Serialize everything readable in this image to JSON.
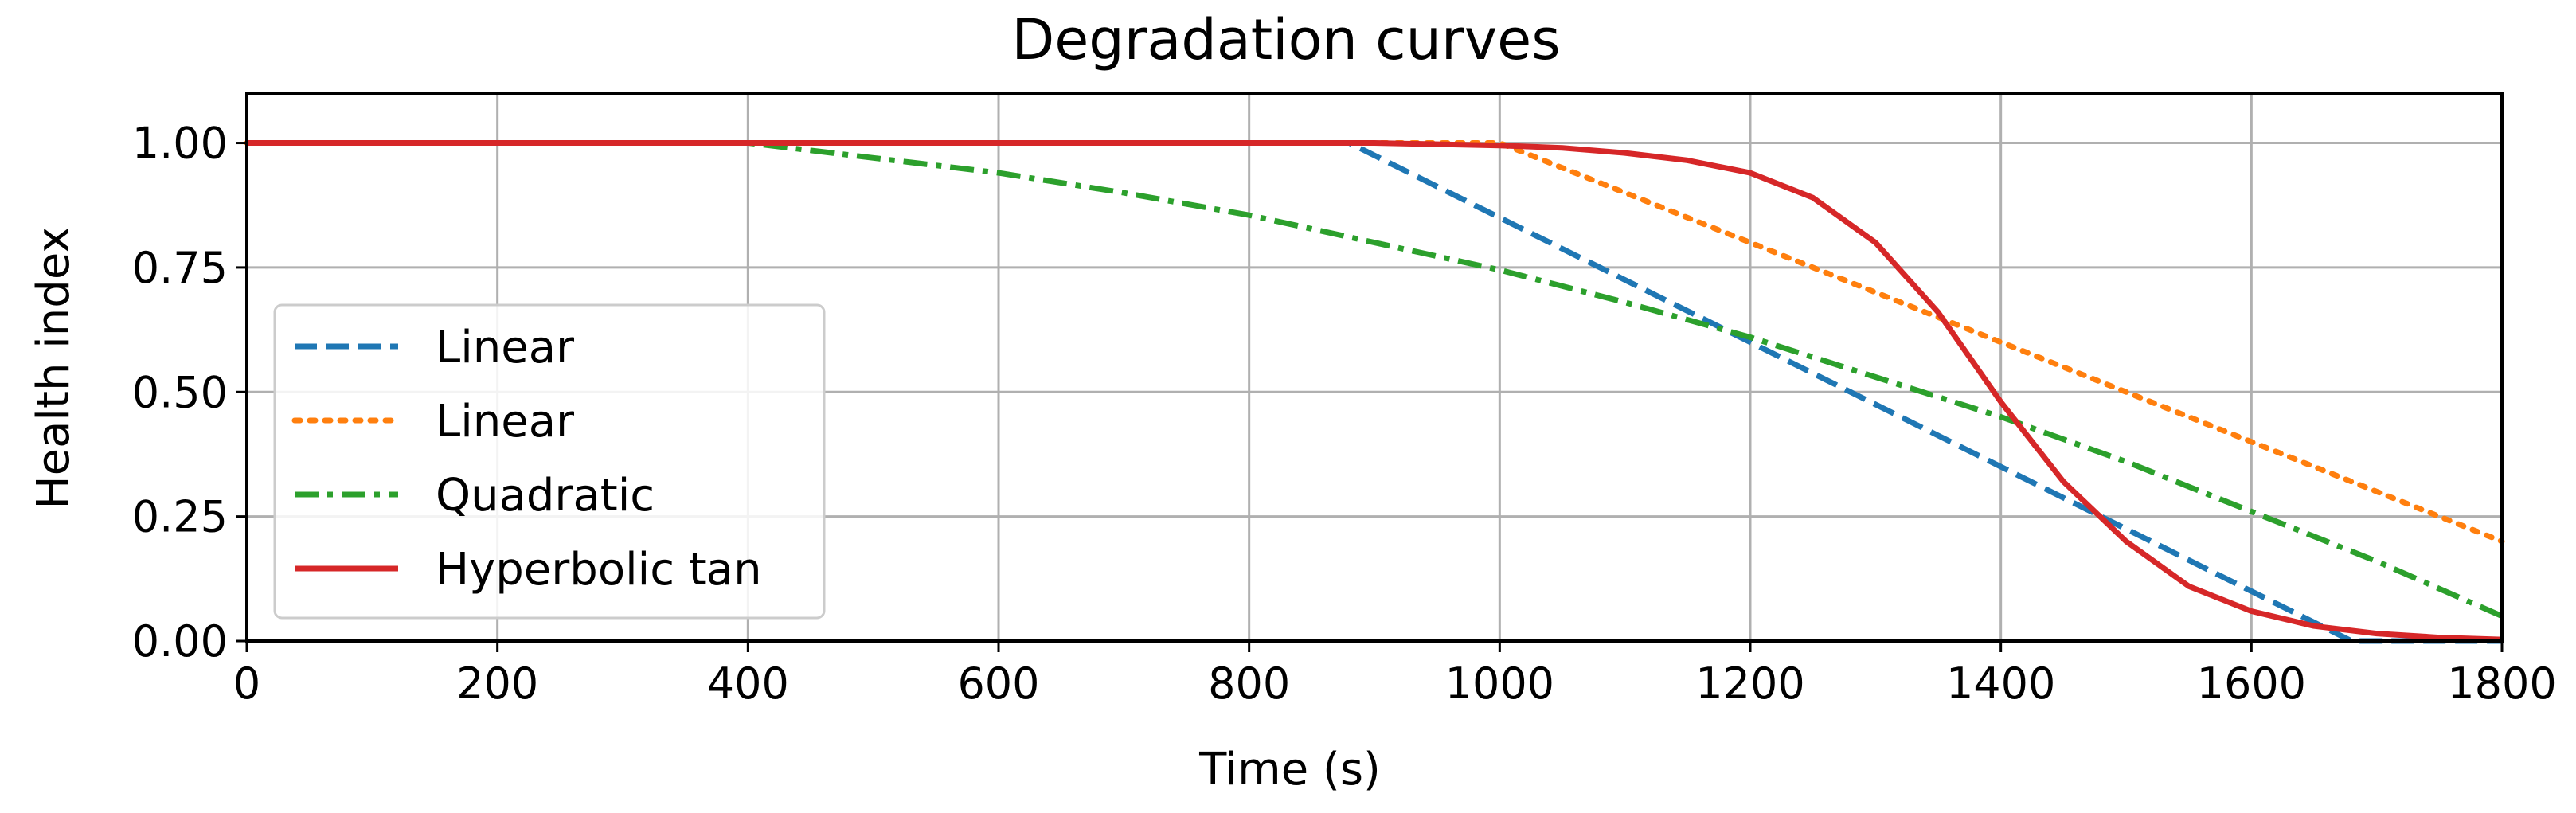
{
  "chart_data": {
    "type": "line",
    "title": "Degradation curves",
    "xlabel": "Time (s)",
    "ylabel": "Health index",
    "xlim": [
      0,
      1800
    ],
    "ylim": [
      0,
      1.1
    ],
    "grid": true,
    "legend_position": "center-left",
    "x_ticks": [
      0,
      200,
      400,
      600,
      800,
      1000,
      1200,
      1400,
      1600,
      1800
    ],
    "x_tick_labels": [
      "0",
      "200",
      "400",
      "600",
      "800",
      "1000",
      "1200",
      "1400",
      "1600",
      "1800"
    ],
    "y_ticks": [
      0,
      0.25,
      0.5,
      0.75,
      1.0
    ],
    "y_tick_labels": [
      "0.00",
      "0.25",
      "0.50",
      "0.75",
      "1.00"
    ],
    "series": [
      {
        "name": "Linear",
        "color": "#1f77b4",
        "style": "dashed",
        "x": [
          0,
          880,
          1680,
          1800
        ],
        "y": [
          1.0,
          1.0,
          0.0,
          0.0
        ]
      },
      {
        "name": "Linear",
        "color": "#ff7f0e",
        "style": "dotted",
        "x": [
          0,
          1000,
          1800
        ],
        "y": [
          1.0,
          1.0,
          0.2
        ]
      },
      {
        "name": "Quadratic",
        "color": "#2ca02c",
        "style": "dashdot",
        "x": [
          0,
          400,
          500,
          600,
          700,
          800,
          900,
          1000,
          1100,
          1200,
          1300,
          1400,
          1500,
          1600,
          1700,
          1800
        ],
        "y": [
          1.0,
          1.0,
          0.97,
          0.94,
          0.9,
          0.855,
          0.8,
          0.745,
          0.68,
          0.61,
          0.53,
          0.45,
          0.36,
          0.26,
          0.16,
          0.05
        ]
      },
      {
        "name": "Hyperbolic tan",
        "color": "#d62728",
        "style": "solid",
        "x": [
          0,
          900,
          1000,
          1050,
          1100,
          1150,
          1200,
          1250,
          1300,
          1350,
          1400,
          1450,
          1500,
          1550,
          1600,
          1650,
          1700,
          1750,
          1800
        ],
        "y": [
          1.0,
          1.0,
          0.995,
          0.99,
          0.98,
          0.965,
          0.94,
          0.89,
          0.8,
          0.66,
          0.48,
          0.32,
          0.2,
          0.11,
          0.06,
          0.03,
          0.015,
          0.007,
          0.003
        ]
      }
    ]
  }
}
